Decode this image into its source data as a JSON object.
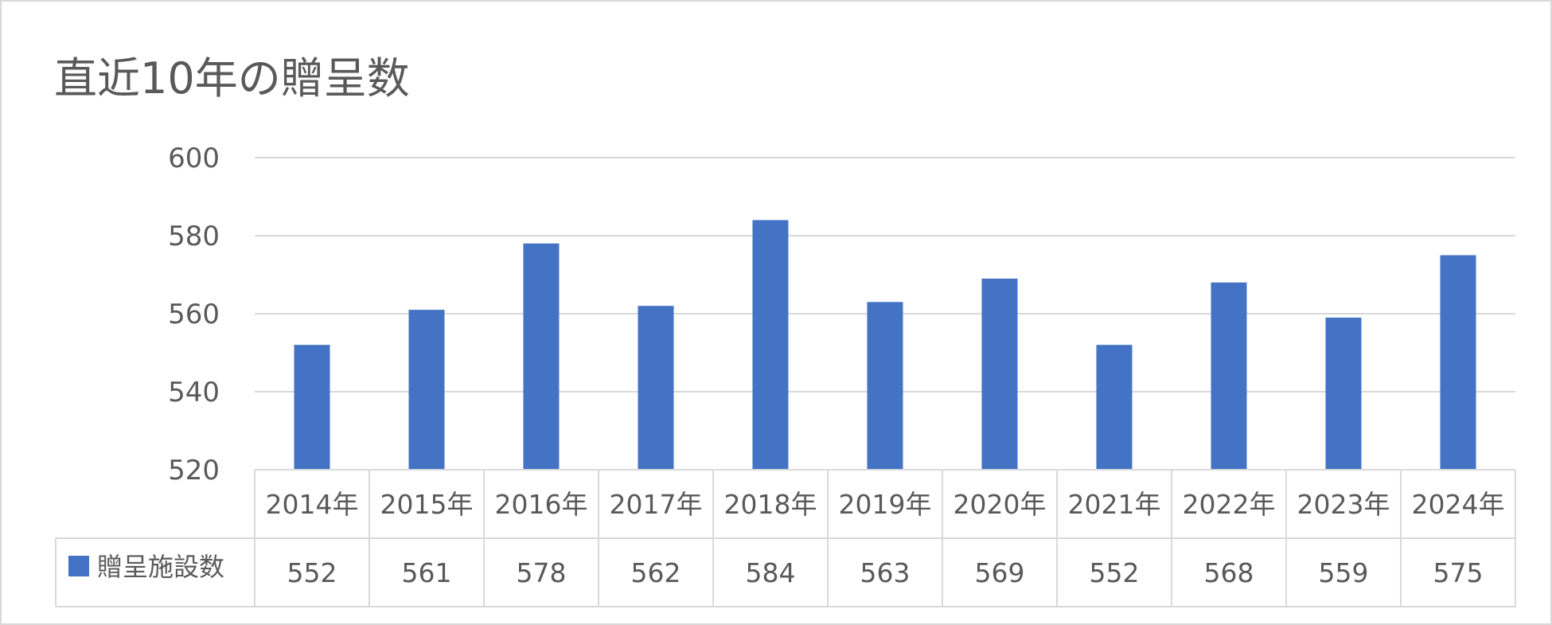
{
  "chart_data": {
    "type": "bar",
    "title": "直近10年の贈呈数",
    "categories": [
      "2014年",
      "2015年",
      "2016年",
      "2017年",
      "2018年",
      "2019年",
      "2020年",
      "2021年",
      "2022年",
      "2023年",
      "2024年"
    ],
    "series": [
      {
        "name": "贈呈施設数",
        "values": [
          552,
          561,
          578,
          562,
          584,
          563,
          569,
          552,
          568,
          559,
          575
        ],
        "color": "#4472C4"
      }
    ],
    "ylim": [
      520,
      600
    ],
    "yticks": [
      520,
      540,
      560,
      580,
      600
    ],
    "grid": true,
    "legend": "data-table"
  }
}
